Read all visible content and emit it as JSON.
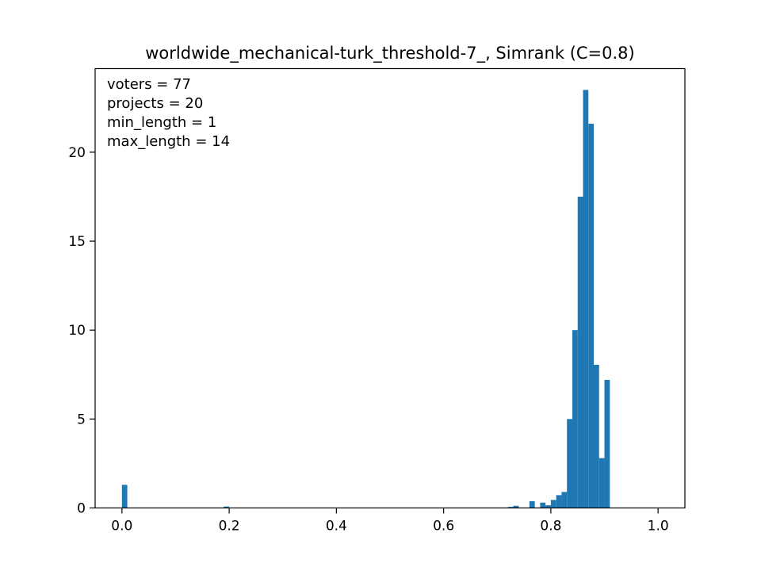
{
  "chart_data": {
    "type": "bar",
    "title": "worldwide_mechanical-turk_threshold-7_, Simrank (C=0.8)",
    "xlabel": "",
    "ylabel": "",
    "xlim": [
      -0.05,
      1.05
    ],
    "ylim": [
      0,
      24.7
    ],
    "xticks": [
      0.0,
      0.2,
      0.4,
      0.6,
      0.8,
      1.0
    ],
    "xtick_labels": [
      "0.0",
      "0.2",
      "0.4",
      "0.6",
      "0.8",
      "1.0"
    ],
    "yticks": [
      0,
      5,
      10,
      15,
      20
    ],
    "ytick_labels": [
      "0",
      "5",
      "10",
      "15",
      "20"
    ],
    "bar_color": "#1f77b4",
    "bin_width": 0.01,
    "series": [
      {
        "bin_starts": [
          0.0,
          0.19,
          0.72,
          0.73,
          0.76,
          0.78,
          0.79,
          0.8,
          0.81,
          0.82,
          0.83,
          0.84,
          0.85,
          0.86,
          0.87,
          0.88,
          0.89,
          0.9
        ],
        "values": [
          1.3,
          0.08,
          0.06,
          0.12,
          0.38,
          0.3,
          0.15,
          0.45,
          0.72,
          0.9,
          5.0,
          10.0,
          17.5,
          23.5,
          21.6,
          8.05,
          2.8,
          7.2
        ]
      }
    ],
    "annotation_lines": [
      "voters = 77",
      "projects = 20",
      "min_length = 1",
      "max_length = 14"
    ],
    "grid": false
  }
}
